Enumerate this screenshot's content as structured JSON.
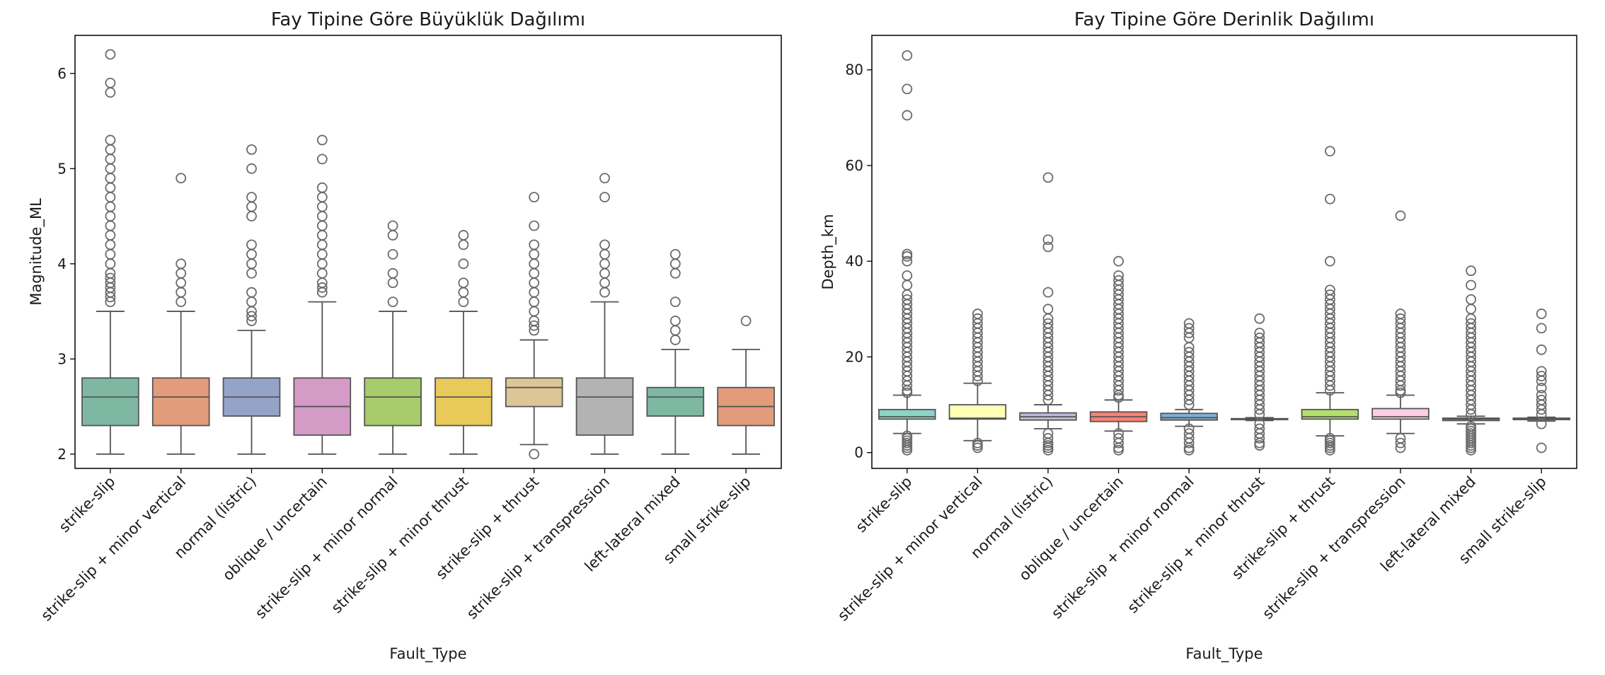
{
  "chart_data": [
    {
      "type": "box",
      "title": "Fay Tipine Göre Büyüklük Dağılımı",
      "xlabel": "Fault_Type",
      "ylabel": "Magnitude_ML",
      "ylim": [
        1.85,
        6.4
      ],
      "yticks": [
        2,
        3,
        4,
        5,
        6
      ],
      "categories": [
        "strike-slip",
        "strike-slip + minor vertical",
        "normal (listric)",
        "oblique / uncertain",
        "strike-slip + minor normal",
        "strike-slip + minor thrust",
        "strike-slip + thrust",
        "strike-slip + transpression",
        "left-lateral mixed",
        "small strike-slip"
      ],
      "colors": [
        "#7fb8a2",
        "#e39c7b",
        "#96a3c9",
        "#d49bc6",
        "#a8cb6b",
        "#e8c95a",
        "#dcc697",
        "#b3b3b3",
        "#7fb8a2",
        "#e39c7b"
      ],
      "boxes": [
        {
          "whislo": 2.0,
          "q1": 2.3,
          "med": 2.6,
          "q3": 2.8,
          "whishi": 3.5,
          "fliers": [
            3.6,
            3.65,
            3.7,
            3.75,
            3.8,
            3.85,
            3.9,
            4.0,
            4.1,
            4.2,
            4.3,
            4.4,
            4.5,
            4.6,
            4.7,
            4.8,
            4.9,
            5.0,
            5.1,
            5.2,
            5.3,
            5.8,
            5.9,
            6.2
          ]
        },
        {
          "whislo": 2.0,
          "q1": 2.3,
          "med": 2.6,
          "q3": 2.8,
          "whishi": 3.5,
          "fliers": [
            3.6,
            3.7,
            3.8,
            3.9,
            4.0,
            4.9
          ]
        },
        {
          "whislo": 2.0,
          "q1": 2.4,
          "med": 2.6,
          "q3": 2.8,
          "whishi": 3.3,
          "fliers": [
            3.4,
            3.45,
            3.5,
            3.6,
            3.7,
            3.9,
            4.0,
            4.1,
            4.2,
            4.5,
            4.6,
            4.7,
            5.0,
            5.2
          ]
        },
        {
          "whislo": 2.0,
          "q1": 2.2,
          "med": 2.5,
          "q3": 2.8,
          "whishi": 3.6,
          "fliers": [
            3.7,
            3.75,
            3.8,
            3.9,
            4.0,
            4.1,
            4.2,
            4.3,
            4.4,
            4.5,
            4.6,
            4.7,
            4.8,
            5.1,
            5.3
          ]
        },
        {
          "whislo": 2.0,
          "q1": 2.3,
          "med": 2.6,
          "q3": 2.8,
          "whishi": 3.5,
          "fliers": [
            3.6,
            3.8,
            3.9,
            4.1,
            4.3,
            4.4
          ]
        },
        {
          "whislo": 2.0,
          "q1": 2.3,
          "med": 2.6,
          "q3": 2.8,
          "whishi": 3.5,
          "fliers": [
            3.6,
            3.7,
            3.8,
            4.0,
            4.2,
            4.3
          ]
        },
        {
          "whislo": 2.1,
          "q1": 2.5,
          "med": 2.7,
          "q3": 2.8,
          "whishi": 3.2,
          "fliers": [
            2.0,
            3.3,
            3.35,
            3.4,
            3.5,
            3.6,
            3.7,
            3.8,
            3.9,
            4.0,
            4.1,
            4.2,
            4.4,
            4.7
          ]
        },
        {
          "whislo": 2.0,
          "q1": 2.2,
          "med": 2.6,
          "q3": 2.8,
          "whishi": 3.6,
          "fliers": [
            3.7,
            3.8,
            3.9,
            4.0,
            4.1,
            4.2,
            4.7,
            4.9
          ]
        },
        {
          "whislo": 2.0,
          "q1": 2.4,
          "med": 2.6,
          "q3": 2.7,
          "whishi": 3.1,
          "fliers": [
            3.2,
            3.3,
            3.4,
            3.6,
            3.9,
            4.0,
            4.1
          ]
        },
        {
          "whislo": 2.0,
          "q1": 2.3,
          "med": 2.5,
          "q3": 2.7,
          "whishi": 3.1,
          "fliers": [
            3.4
          ]
        }
      ]
    },
    {
      "type": "box",
      "title": "Fay Tipine Göre Derinlik Dağılımı",
      "xlabel": "Fault_Type",
      "ylabel": "Depth_km",
      "ylim": [
        -3.3,
        87.2
      ],
      "yticks": [
        0,
        20,
        40,
        60,
        80
      ],
      "categories": [
        "strike-slip",
        "strike-slip + minor vertical",
        "normal (listric)",
        "oblique / uncertain",
        "strike-slip + minor normal",
        "strike-slip + minor thrust",
        "strike-slip + thrust",
        "strike-slip + transpression",
        "left-lateral mixed",
        "small strike-slip"
      ],
      "colors": [
        "#8dd3c7",
        "#ffffb3",
        "#bebada",
        "#fb8072",
        "#80b1d3",
        "#fdb462",
        "#b3de69",
        "#fccde5",
        "#d9d9d9",
        "#bc80bd"
      ],
      "boxes": [
        {
          "whislo": 4.0,
          "q1": 7.0,
          "med": 7.5,
          "q3": 9.0,
          "whishi": 12.0,
          "fliers": [
            0.5,
            1.0,
            1.5,
            2.0,
            2.5,
            3.0,
            3.5,
            12.5,
            13,
            14,
            15,
            16,
            17,
            18,
            19,
            20,
            21,
            22,
            23,
            24,
            25,
            26,
            27,
            28,
            29,
            30,
            31,
            32,
            33,
            35,
            37,
            40,
            41,
            41.5,
            70.5,
            76,
            83
          ]
        },
        {
          "whislo": 2.5,
          "q1": 7.0,
          "med": 7.2,
          "q3": 10.0,
          "whishi": 14.5,
          "fliers": [
            1.0,
            1.5,
            2.0,
            15,
            16,
            17,
            18,
            19,
            20,
            21,
            22,
            23,
            24,
            25,
            26,
            27,
            28,
            29
          ]
        },
        {
          "whislo": 5.0,
          "q1": 6.8,
          "med": 7.5,
          "q3": 8.3,
          "whishi": 10.0,
          "fliers": [
            0.5,
            1.0,
            1.5,
            2.0,
            3.0,
            4.0,
            11,
            12,
            13,
            14,
            15,
            16,
            17,
            18,
            19,
            20,
            21,
            22,
            23,
            24,
            25,
            26,
            27,
            28,
            30,
            33.5,
            43,
            44.5,
            57.5
          ]
        },
        {
          "whislo": 4.5,
          "q1": 6.5,
          "med": 7.5,
          "q3": 8.5,
          "whishi": 11.0,
          "fliers": [
            0.5,
            1.0,
            2.0,
            3.0,
            4.0,
            11.5,
            12,
            13,
            14,
            15,
            16,
            17,
            18,
            19,
            20,
            21,
            22,
            23,
            24,
            25,
            26,
            27,
            28,
            29,
            30,
            31,
            32,
            33,
            34,
            35,
            36,
            37,
            40
          ]
        },
        {
          "whislo": 5.5,
          "q1": 6.8,
          "med": 7.3,
          "q3": 8.2,
          "whishi": 9.0,
          "fliers": [
            0.5,
            1.0,
            2.0,
            3.0,
            4.0,
            5.0,
            10,
            11,
            12,
            13,
            14,
            15,
            16,
            17,
            18,
            19,
            20,
            21,
            22,
            24,
            25,
            26,
            27
          ]
        },
        {
          "whislo": 6.7,
          "q1": 6.9,
          "med": 7.0,
          "q3": 7.1,
          "whishi": 7.3,
          "fliers": [
            1.5,
            2.0,
            3.0,
            4.0,
            5.0,
            6.0,
            8,
            9,
            10,
            11,
            12,
            13,
            14,
            15,
            16,
            17,
            18,
            19,
            20,
            21,
            22,
            23,
            24,
            25,
            28
          ]
        },
        {
          "whislo": 3.5,
          "q1": 7.0,
          "med": 7.5,
          "q3": 9.0,
          "whishi": 12.5,
          "fliers": [
            0.5,
            1.0,
            1.5,
            2.0,
            2.5,
            3.0,
            13,
            14,
            15,
            16,
            17,
            18,
            19,
            20,
            21,
            22,
            23,
            24,
            25,
            26,
            27,
            28,
            29,
            30,
            31,
            32,
            33,
            34,
            40,
            53,
            63
          ]
        },
        {
          "whislo": 4.0,
          "q1": 7.0,
          "med": 7.5,
          "q3": 9.2,
          "whishi": 12.0,
          "fliers": [
            1.0,
            2.0,
            3.0,
            12.5,
            13,
            14,
            15,
            16,
            17,
            18,
            19,
            20,
            21,
            22,
            23,
            24,
            25,
            26,
            27,
            28,
            29,
            49.5
          ]
        },
        {
          "whislo": 6.0,
          "q1": 6.7,
          "med": 7.0,
          "q3": 7.2,
          "whishi": 7.6,
          "fliers": [
            0.5,
            1.0,
            1.5,
            2.0,
            2.5,
            3.0,
            3.5,
            4.0,
            4.5,
            5.0,
            5.5,
            8,
            9,
            10,
            11,
            12,
            13,
            14,
            15,
            16,
            17,
            18,
            19,
            20,
            21,
            22,
            23,
            24,
            25,
            26,
            27,
            28,
            30,
            32,
            35,
            38
          ]
        },
        {
          "whislo": 6.6,
          "q1": 6.9,
          "med": 7.0,
          "q3": 7.2,
          "whishi": 7.4,
          "fliers": [
            1.0,
            6.0,
            8,
            9,
            10,
            11,
            12,
            13.5,
            15,
            16,
            17,
            21.5,
            26,
            29
          ]
        }
      ]
    }
  ]
}
